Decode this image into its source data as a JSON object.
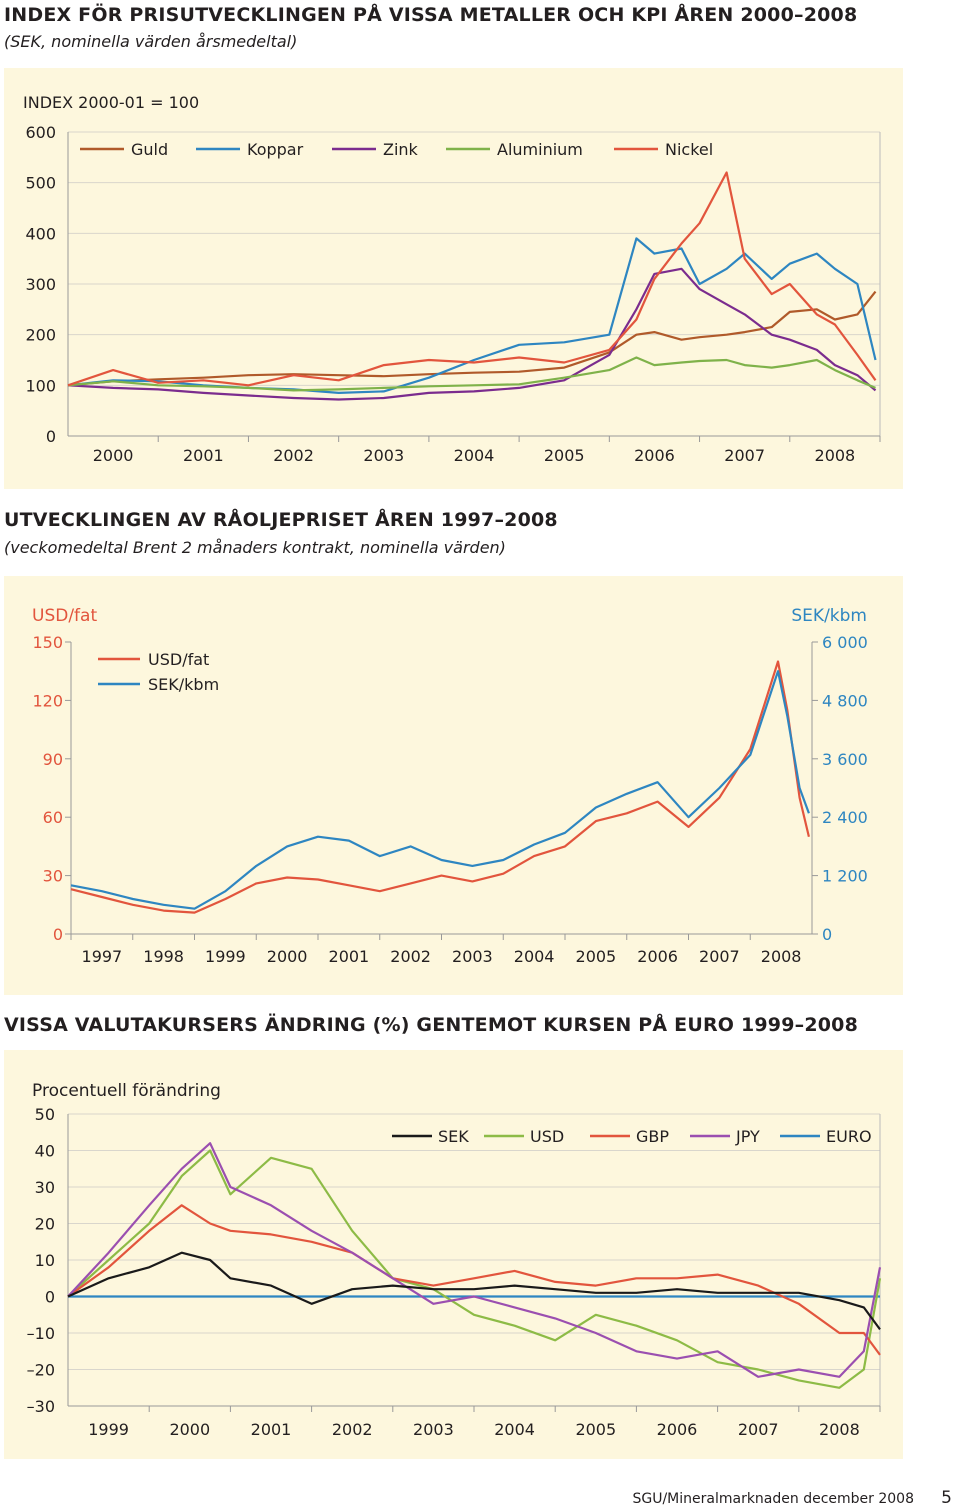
{
  "charts": [
    {
      "title": "INDEX FÖR PRISUTVECKLINGEN PÅ VISSA METALLER OCH KPI ÅREN 2000–2008",
      "subtitle": "(SEK, nominella värden årsmedeltal)",
      "y_label": "INDEX 2000-01 = 100",
      "legend": [
        {
          "name": "Guld",
          "color": "#b05a2a"
        },
        {
          "name": "Koppar",
          "color": "#2e86c1"
        },
        {
          "name": "Zink",
          "color": "#7b2c8e"
        },
        {
          "name": "Aluminium",
          "color": "#7fb24a"
        },
        {
          "name": "Nickel",
          "color": "#e2553d"
        }
      ]
    },
    {
      "title": "UTVECKLINGEN AV RÅOLJEPRISET ÅREN 1997–2008",
      "subtitle": "(veckomedeltal Brent 2 månaders kontrakt, nominella värden)",
      "y_left_label": "USD/fat",
      "y_right_label": "SEK/kbm",
      "legend": [
        {
          "name": "USD/fat",
          "color": "#e2553d"
        },
        {
          "name": "SEK/kbm",
          "color": "#2e86c1"
        }
      ]
    },
    {
      "title": "VISSA VALUTAKURSERS ÄNDRING (%) GENTEMOT KURSEN PÅ EURO 1999–2008",
      "y_label": "Procentuell förändring",
      "legend": [
        {
          "name": "SEK",
          "color": "#1a1a1a"
        },
        {
          "name": "USD",
          "color": "#8dbb46"
        },
        {
          "name": "GBP",
          "color": "#e2553d"
        },
        {
          "name": "JPY",
          "color": "#9b4fb0"
        },
        {
          "name": "EURO",
          "color": "#2e86c1"
        }
      ]
    }
  ],
  "chart_data": [
    {
      "type": "line",
      "title": "INDEX FÖR PRISUTVECKLINGEN PÅ VISSA METALLER OCH KPI ÅREN 2000–2008",
      "ylabel": "INDEX 2000-01 = 100",
      "xlim": [
        2000,
        2009
      ],
      "ylim": [
        0,
        600
      ],
      "yticks": [
        0,
        100,
        200,
        300,
        400,
        500,
        600
      ],
      "xtick_labels": [
        "2000",
        "2001",
        "2002",
        "2003",
        "2004",
        "2005",
        "2006",
        "2007",
        "2008"
      ],
      "x": [
        2000.0,
        2000.5,
        2001.0,
        2001.5,
        2002.0,
        2002.5,
        2003.0,
        2003.5,
        2004.0,
        2004.5,
        2005.0,
        2005.5,
        2006.0,
        2006.3,
        2006.5,
        2006.8,
        2007.0,
        2007.3,
        2007.5,
        2007.8,
        2008.0,
        2008.3,
        2008.5,
        2008.75,
        2008.95
      ],
      "series": [
        {
          "name": "Guld",
          "color": "#b05a2a",
          "values": [
            100,
            108,
            112,
            115,
            120,
            122,
            120,
            118,
            122,
            125,
            127,
            135,
            165,
            200,
            205,
            190,
            195,
            200,
            205,
            215,
            245,
            250,
            230,
            240,
            285
          ]
        },
        {
          "name": "Koppar",
          "color": "#2e86c1",
          "values": [
            100,
            110,
            108,
            100,
            95,
            92,
            85,
            88,
            115,
            150,
            180,
            185,
            200,
            390,
            360,
            370,
            300,
            330,
            360,
            310,
            340,
            360,
            330,
            300,
            150
          ]
        },
        {
          "name": "Zink",
          "color": "#7b2c8e",
          "values": [
            100,
            95,
            92,
            85,
            80,
            75,
            72,
            75,
            85,
            88,
            95,
            110,
            160,
            250,
            320,
            330,
            290,
            260,
            240,
            200,
            190,
            170,
            140,
            120,
            90
          ]
        },
        {
          "name": "Aluminium",
          "color": "#7fb24a",
          "values": [
            100,
            108,
            100,
            98,
            95,
            90,
            92,
            95,
            98,
            100,
            102,
            115,
            130,
            155,
            140,
            145,
            148,
            150,
            140,
            135,
            140,
            150,
            130,
            110,
            95
          ]
        },
        {
          "name": "Nickel",
          "color": "#e2553d",
          "values": [
            100,
            130,
            105,
            110,
            100,
            120,
            110,
            140,
            150,
            145,
            155,
            145,
            170,
            230,
            310,
            380,
            420,
            520,
            350,
            280,
            300,
            240,
            220,
            160,
            110
          ]
        }
      ]
    },
    {
      "type": "line",
      "title": "UTVECKLINGEN AV RÅOLJEPRISET ÅREN 1997–2008",
      "y_left": {
        "label": "USD/fat",
        "ylim": [
          0,
          150
        ],
        "ticks": [
          0,
          30,
          60,
          90,
          120,
          150
        ]
      },
      "y_right": {
        "label": "SEK/kbm",
        "ylim": [
          0,
          6000
        ],
        "ticks": [
          0,
          1200,
          2400,
          3600,
          4800,
          6000
        ],
        "tick_labels": [
          "0",
          "1 200",
          "2 400",
          "3 600",
          "4 800",
          "6 000"
        ]
      },
      "xlim": [
        1997,
        2009
      ],
      "xtick_labels": [
        "1997",
        "1998",
        "1999",
        "2000",
        "2001",
        "2002",
        "2003",
        "2004",
        "2005",
        "2006",
        "2007",
        "2008"
      ],
      "x": [
        1997.0,
        1997.5,
        1998.0,
        1998.5,
        1999.0,
        1999.5,
        2000.0,
        2000.5,
        2001.0,
        2001.5,
        2002.0,
        2002.5,
        2003.0,
        2003.5,
        2004.0,
        2004.5,
        2005.0,
        2005.5,
        2006.0,
        2006.5,
        2007.0,
        2007.5,
        2008.0,
        2008.45,
        2008.6,
        2008.8,
        2008.95
      ],
      "series": [
        {
          "name": "USD/fat",
          "color": "#e2553d",
          "axis": "left",
          "values": [
            23,
            19,
            15,
            12,
            11,
            18,
            26,
            29,
            28,
            25,
            22,
            26,
            30,
            27,
            31,
            40,
            45,
            58,
            62,
            68,
            55,
            70,
            95,
            140,
            115,
            70,
            50
          ]
        },
        {
          "name": "SEK/kbm",
          "color": "#2e86c1",
          "axis": "left_scaled",
          "values": [
            25,
            22,
            18,
            15,
            13,
            22,
            35,
            45,
            50,
            48,
            40,
            45,
            38,
            35,
            38,
            46,
            52,
            65,
            72,
            78,
            60,
            75,
            92,
            135,
            112,
            75,
            62
          ]
        }
      ]
    },
    {
      "type": "line",
      "title": "VISSA VALUTAKURSERS ÄNDRING (%) GENTEMOT KURSEN PÅ EURO 1999–2008",
      "ylabel": "Procentuell förändring",
      "xlim": [
        1999,
        2009
      ],
      "ylim": [
        -30,
        50
      ],
      "yticks": [
        -30,
        -20,
        -10,
        0,
        10,
        20,
        30,
        40,
        50
      ],
      "ytick_labels": [
        "–30",
        "–20",
        "–10",
        "0",
        "10",
        "20",
        "30",
        "40",
        "50"
      ],
      "xtick_labels": [
        "1999",
        "2000",
        "2001",
        "2002",
        "2003",
        "2004",
        "2005",
        "2006",
        "2007",
        "2008"
      ],
      "x": [
        1999.0,
        1999.5,
        2000.0,
        2000.4,
        2000.75,
        2001.0,
        2001.5,
        2002.0,
        2002.5,
        2003.0,
        2003.5,
        2004.0,
        2004.5,
        2005.0,
        2005.5,
        2006.0,
        2006.5,
        2007.0,
        2007.5,
        2008.0,
        2008.5,
        2008.8,
        2009.0
      ],
      "series": [
        {
          "name": "SEK",
          "color": "#1a1a1a",
          "values": [
            0,
            5,
            8,
            12,
            10,
            5,
            3,
            -2,
            2,
            3,
            2,
            2,
            3,
            2,
            1,
            1,
            2,
            1,
            1,
            1,
            -1,
            -3,
            -9
          ]
        },
        {
          "name": "USD",
          "color": "#8dbb46",
          "values": [
            0,
            10,
            20,
            33,
            40,
            28,
            38,
            35,
            18,
            5,
            2,
            -5,
            -8,
            -12,
            -5,
            -8,
            -12,
            -18,
            -20,
            -23,
            -25,
            -20,
            5
          ]
        },
        {
          "name": "GBP",
          "color": "#e2553d",
          "values": [
            0,
            8,
            18,
            25,
            20,
            18,
            17,
            15,
            12,
            5,
            3,
            5,
            7,
            4,
            3,
            5,
            5,
            6,
            3,
            -2,
            -10,
            -10,
            -16
          ]
        },
        {
          "name": "JPY",
          "color": "#9b4fb0",
          "values": [
            0,
            12,
            25,
            35,
            42,
            30,
            25,
            18,
            12,
            5,
            -2,
            0,
            -3,
            -6,
            -10,
            -15,
            -17,
            -15,
            -22,
            -20,
            -22,
            -15,
            8
          ]
        },
        {
          "name": "EURO",
          "color": "#2e86c1",
          "values": [
            0,
            0,
            0,
            0,
            0,
            0,
            0,
            0,
            0,
            0,
            0,
            0,
            0,
            0,
            0,
            0,
            0,
            0,
            0,
            0,
            0,
            0,
            0
          ]
        }
      ]
    }
  ],
  "footer": {
    "text": "SGU/Mineralmarknaden december 2008",
    "page": "5"
  }
}
